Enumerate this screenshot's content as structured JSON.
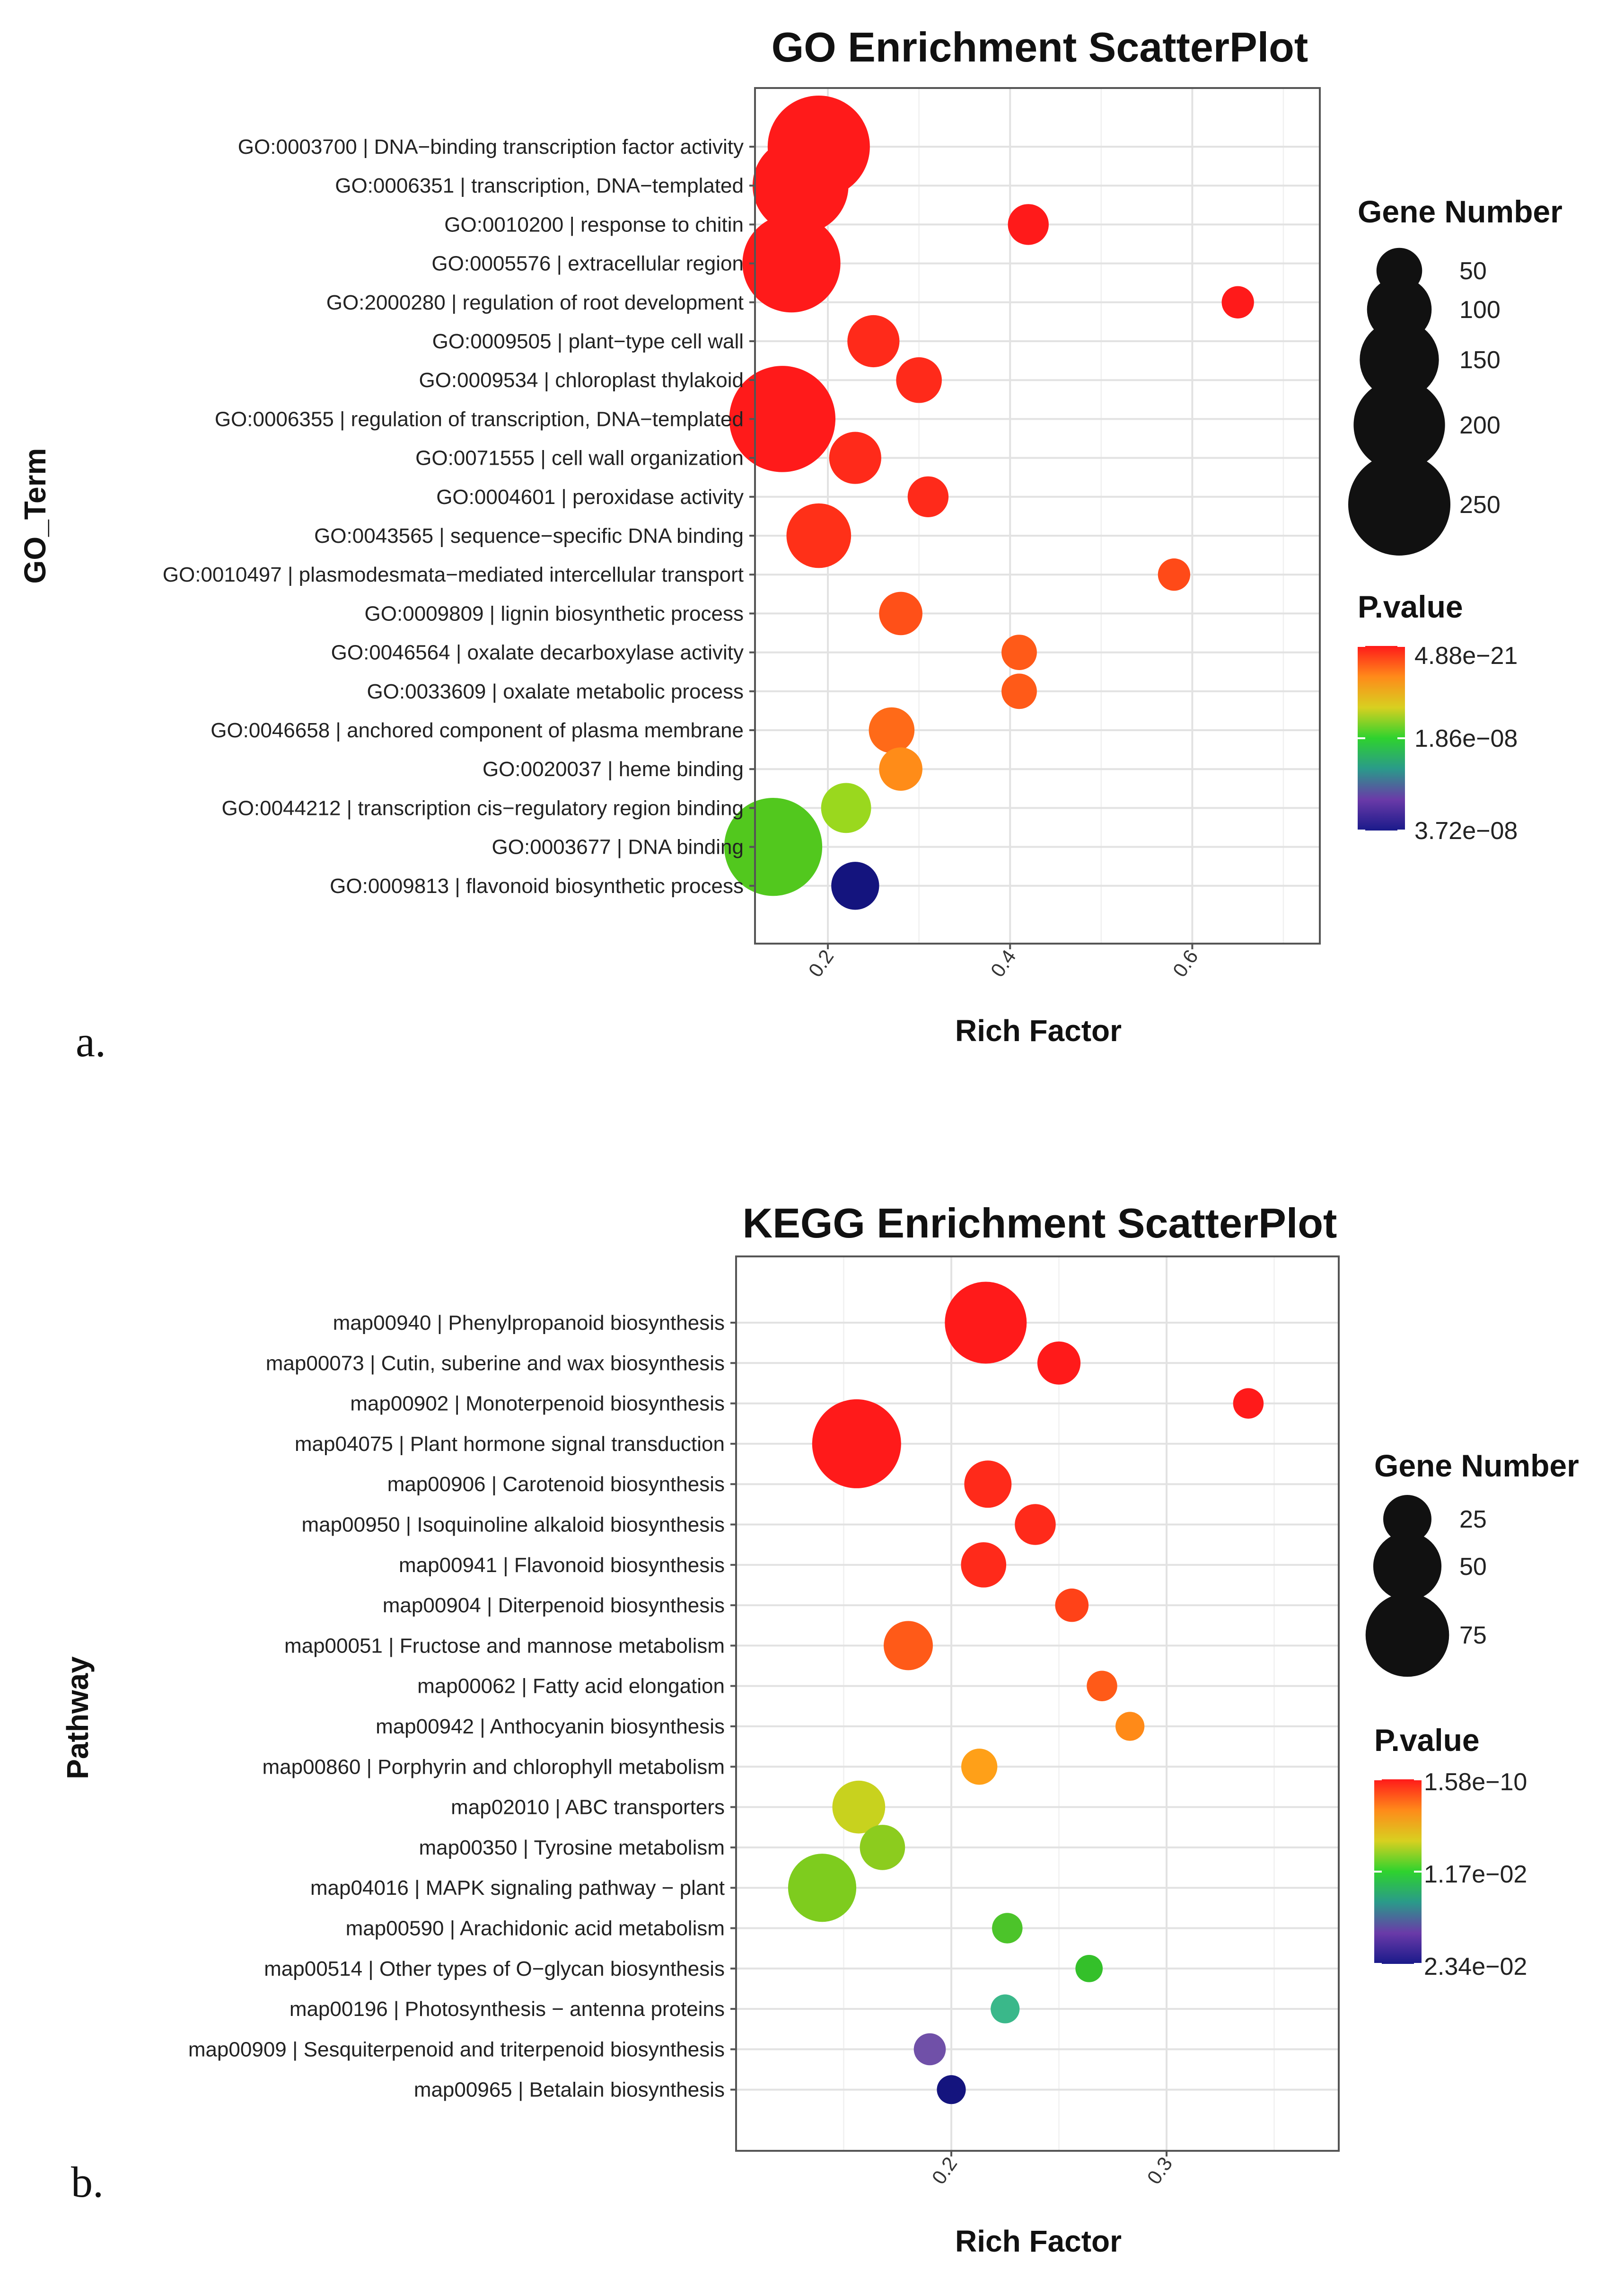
{
  "chart_data": [
    {
      "type": "scatter",
      "panel_label": "a.",
      "title": "GO Enrichment ScatterPlot",
      "xlabel": "Rich Factor",
      "ylabel": "GO_Term",
      "xlim": [
        0.12,
        0.74
      ],
      "xticks": [
        0.2,
        0.4,
        0.6
      ],
      "xtick_labels": [
        "0.2",
        "0.4",
        "0.6"
      ],
      "size_legend": {
        "title": "Gene Number",
        "values": [
          50,
          100,
          150,
          200,
          250
        ],
        "labels": [
          "50",
          "100",
          "150",
          "200",
          "250"
        ],
        "max": 250
      },
      "color_legend": {
        "title": "P.value",
        "labels": [
          "4.88e−21",
          "1.86e−08",
          "3.72e−08"
        ],
        "colors": [
          "#ff1a1a",
          "#ff8a1a",
          "#d8d020",
          "#2ed22e",
          "#2a9a8a",
          "#6a3aa8",
          "#1a1a8a"
        ]
      },
      "points": [
        {
          "label": "GO:0003700 | DNA−binding transcription factor activity",
          "x": 0.19,
          "size": 250,
          "color": "#ff1a1a"
        },
        {
          "label": "GO:0006351 | transcription, DNA−templated",
          "x": 0.17,
          "size": 220,
          "color": "#ff1a1a"
        },
        {
          "label": "GO:0010200 | response to chitin",
          "x": 0.42,
          "size": 40,
          "color": "#ff1a1a"
        },
        {
          "label": "GO:0005576 | extracellular region",
          "x": 0.16,
          "size": 230,
          "color": "#ff1a1a"
        },
        {
          "label": "GO:2000280 | regulation of root development",
          "x": 0.65,
          "size": 25,
          "color": "#ff1a1a"
        },
        {
          "label": "GO:0009505 | plant−type cell wall",
          "x": 0.25,
          "size": 65,
          "color": "#ff2a1a"
        },
        {
          "label": "GO:0009534 | chloroplast thylakoid",
          "x": 0.3,
          "size": 50,
          "color": "#ff2a1a"
        },
        {
          "label": "GO:0006355 | regulation of transcription, DNA−templated",
          "x": 0.15,
          "size": 270,
          "color": "#ff1a1a"
        },
        {
          "label": "GO:0071555 | cell wall organization",
          "x": 0.23,
          "size": 65,
          "color": "#ff2a1a"
        },
        {
          "label": "GO:0004601 | peroxidase activity",
          "x": 0.31,
          "size": 40,
          "color": "#ff2a1a"
        },
        {
          "label": "GO:0043565 | sequence−specific DNA binding",
          "x": 0.19,
          "size": 100,
          "color": "#ff3018"
        },
        {
          "label": "GO:0010497 | plasmodesmata−mediated intercellular transport",
          "x": 0.58,
          "size": 25,
          "color": "#ff4a18"
        },
        {
          "label": "GO:0009809 | lignin biosynthetic process",
          "x": 0.28,
          "size": 45,
          "color": "#ff5018"
        },
        {
          "label": "GO:0046564 | oxalate decarboxylase activity",
          "x": 0.41,
          "size": 30,
          "color": "#ff5a18"
        },
        {
          "label": "GO:0033609 | oxalate metabolic process",
          "x": 0.41,
          "size": 30,
          "color": "#ff5a18"
        },
        {
          "label": "GO:0046658 | anchored component of plasma membrane",
          "x": 0.27,
          "size": 50,
          "color": "#ff6a18"
        },
        {
          "label": "GO:0020037 | heme binding",
          "x": 0.28,
          "size": 45,
          "color": "#ff8c18"
        },
        {
          "label": "GO:0044212 | transcription cis−regulatory region binding",
          "x": 0.22,
          "size": 60,
          "color": "#9ad81e"
        },
        {
          "label": "GO:0003677 | DNA binding",
          "x": 0.14,
          "size": 230,
          "color": "#52c81e"
        },
        {
          "label": "GO:0009813 | flavonoid biosynthetic process",
          "x": 0.23,
          "size": 55,
          "color": "#14147e"
        }
      ]
    },
    {
      "type": "scatter",
      "panel_label": "b.",
      "title": "KEGG Enrichment ScatterPlot",
      "xlabel": "Rich Factor",
      "ylabel": "Pathway",
      "xlim": [
        0.1,
        0.38
      ],
      "xticks": [
        0.2,
        0.3
      ],
      "xtick_labels": [
        "0.2",
        "0.3"
      ],
      "size_legend": {
        "title": "Gene Number",
        "values": [
          25,
          50,
          75
        ],
        "labels": [
          "25",
          "50",
          "75"
        ],
        "max": 85
      },
      "color_legend": {
        "title": "P.value",
        "labels": [
          "1.58e−10",
          "1.17e−02",
          "2.34e−02"
        ],
        "colors": [
          "#ff1a1a",
          "#ff8a1a",
          "#d8d020",
          "#2ed22e",
          "#2a9a8a",
          "#6a3aa8",
          "#1a1a8a"
        ]
      },
      "points": [
        {
          "label": "map00940 | Phenylpropanoid biosynthesis",
          "x": 0.216,
          "size": 72,
          "color": "#ff1a1a"
        },
        {
          "label": "map00073 | Cutin, suberine and wax biosynthesis",
          "x": 0.25,
          "size": 20,
          "color": "#ff1a1a"
        },
        {
          "label": "map00902 | Monoterpenoid biosynthesis",
          "x": 0.338,
          "size": 10,
          "color": "#ff1a1a"
        },
        {
          "label": "map04075 | Plant hormone signal transduction",
          "x": 0.156,
          "size": 85,
          "color": "#ff1a1a"
        },
        {
          "label": "map00906 | Carotenoid biosynthesis",
          "x": 0.217,
          "size": 24,
          "color": "#ff2a1a"
        },
        {
          "label": "map00950 | Isoquinoline alkaloid biosynthesis",
          "x": 0.239,
          "size": 18,
          "color": "#ff2a1a"
        },
        {
          "label": "map00941 | Flavonoid biosynthesis",
          "x": 0.215,
          "size": 22,
          "color": "#ff2a1a"
        },
        {
          "label": "map00904 | Diterpenoid biosynthesis",
          "x": 0.256,
          "size": 12,
          "color": "#ff4218"
        },
        {
          "label": "map00051 | Fructose and mannose metabolism",
          "x": 0.18,
          "size": 26,
          "color": "#ff5a18"
        },
        {
          "label": "map00062 | Fatty acid elongation",
          "x": 0.27,
          "size": 10,
          "color": "#ff5a18"
        },
        {
          "label": "map00942 | Anthocyanin biosynthesis",
          "x": 0.283,
          "size": 9,
          "color": "#ff8a18"
        },
        {
          "label": "map00860 | Porphyrin and chlorophyll metabolism",
          "x": 0.213,
          "size": 14,
          "color": "#ffa018"
        },
        {
          "label": "map02010 | ABC transporters",
          "x": 0.157,
          "size": 30,
          "color": "#c8d21e"
        },
        {
          "label": "map00350 | Tyrosine metabolism",
          "x": 0.168,
          "size": 22,
          "color": "#8ccc1e"
        },
        {
          "label": "map04016 | MAPK signaling pathway − plant",
          "x": 0.14,
          "size": 50,
          "color": "#7ecc1e"
        },
        {
          "label": "map00590 | Arachidonic acid metabolism",
          "x": 0.226,
          "size": 10,
          "color": "#4cc42a"
        },
        {
          "label": "map00514 | Other types of O−glycan biosynthesis",
          "x": 0.264,
          "size": 8,
          "color": "#34c02a"
        },
        {
          "label": "map00196 | Photosynthesis − antenna proteins",
          "x": 0.225,
          "size": 9,
          "color": "#3ab88a"
        },
        {
          "label": "map00909 | Sesquiterpenoid and triterpenoid biosynthesis",
          "x": 0.19,
          "size": 11,
          "color": "#7050a8"
        },
        {
          "label": "map00965 | Betalain biosynthesis",
          "x": 0.2,
          "size": 9,
          "color": "#14147e"
        }
      ]
    }
  ]
}
